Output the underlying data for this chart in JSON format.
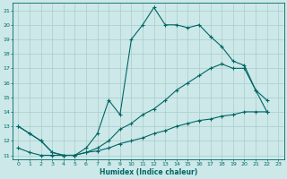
{
  "title": "",
  "xlabel": "Humidex (Indice chaleur)",
  "bg_color": "#cce8e8",
  "grid_color": "#aacccc",
  "line_color": "#006666",
  "line1_x": [
    0,
    1,
    2,
    3,
    4,
    5,
    6,
    7,
    8,
    9,
    10,
    11,
    12,
    13,
    14,
    15,
    16,
    17,
    18,
    19,
    20,
    21,
    22
  ],
  "line1_y": [
    13,
    12.5,
    12,
    11.2,
    11,
    11,
    11.5,
    12.5,
    14.8,
    13.8,
    19.0,
    20.0,
    21.2,
    20.0,
    20.0,
    19.8,
    20.0,
    19.2,
    18.5,
    17.5,
    17.2,
    15.5,
    14.0
  ],
  "line2_x": [
    0,
    1,
    2,
    3,
    4,
    5,
    6,
    7,
    8,
    9,
    10,
    11,
    12,
    13,
    14,
    15,
    16,
    17,
    18,
    19,
    20,
    21,
    22
  ],
  "line2_y": [
    13,
    12.5,
    12,
    11.2,
    11,
    11,
    11.2,
    11.5,
    12.0,
    12.8,
    13.2,
    13.8,
    14.2,
    14.8,
    15.5,
    16.0,
    16.5,
    17.0,
    17.3,
    17.0,
    17.0,
    15.5,
    14.8
  ],
  "line3_x": [
    0,
    1,
    2,
    3,
    4,
    5,
    6,
    7,
    8,
    9,
    10,
    11,
    12,
    13,
    14,
    15,
    16,
    17,
    18,
    19,
    20,
    21,
    22
  ],
  "line3_y": [
    11.5,
    11.2,
    11.0,
    11.0,
    11.0,
    11.0,
    11.2,
    11.3,
    11.5,
    11.8,
    12.0,
    12.2,
    12.5,
    12.7,
    13.0,
    13.2,
    13.4,
    13.5,
    13.7,
    13.8,
    14.0,
    14.0,
    14.0
  ],
  "xlim": [
    -0.5,
    23.5
  ],
  "ylim": [
    10.7,
    21.5
  ],
  "xticks": [
    0,
    1,
    2,
    3,
    4,
    5,
    6,
    7,
    8,
    9,
    10,
    11,
    12,
    13,
    14,
    15,
    16,
    17,
    18,
    19,
    20,
    21,
    22,
    23
  ],
  "yticks": [
    11,
    12,
    13,
    14,
    15,
    16,
    17,
    18,
    19,
    20,
    21
  ]
}
